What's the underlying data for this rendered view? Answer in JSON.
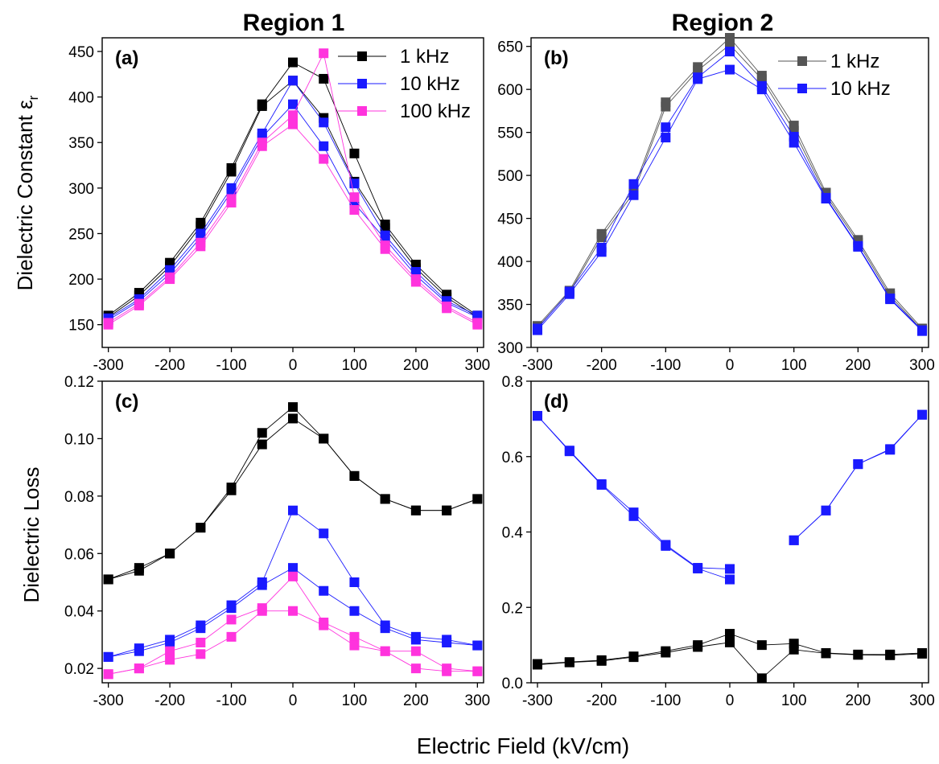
{
  "figure": {
    "region1_title": "Region 1",
    "region2_title": "Region 2",
    "xlabel_common": "Electric Field (kV/cm)",
    "ylabel_top": "Dielectric Constant ε",
    "ylabel_top_sub": "r",
    "ylabel_bottom": "Dielectric Loss"
  },
  "colors": {
    "black": "#000000",
    "gray": "#555555",
    "blue": "#1a1aff",
    "magenta": "#ff33dd"
  },
  "chart_data": [
    {
      "id": "a",
      "type": "line",
      "panel_label": "(a)",
      "x": [
        -300,
        -250,
        -200,
        -150,
        -100,
        -50,
        0,
        50,
        100,
        150,
        200,
        250,
        300
      ],
      "xlim": [
        -310,
        310
      ],
      "ylim": [
        125,
        465
      ],
      "xticks": [
        -300,
        -200,
        -100,
        0,
        100,
        200,
        300
      ],
      "yticks": [
        150,
        200,
        250,
        300,
        350,
        400,
        450
      ],
      "legend": [
        "1 kHz",
        "10 kHz",
        "100 kHz"
      ],
      "series": [
        {
          "name": "1 kHz",
          "color": "black",
          "values": [
            160,
            185,
            218,
            262,
            322,
            392,
            438,
            420,
            338,
            260,
            216,
            183,
            160
          ]
        },
        {
          "name": "1 kHz",
          "color": "black",
          "values": [
            158,
            182,
            214,
            258,
            318,
            390,
            418,
            377,
            307,
            256,
            212,
            180,
            158
          ]
        },
        {
          "name": "10 kHz",
          "color": "blue",
          "values": [
            157,
            178,
            210,
            250,
            300,
            360,
            418,
            372,
            305,
            248,
            208,
            176,
            160
          ]
        },
        {
          "name": "10 kHz",
          "color": "blue",
          "values": [
            155,
            176,
            206,
            246,
            296,
            356,
            392,
            346,
            283,
            244,
            204,
            174,
            158
          ]
        },
        {
          "name": "100 kHz",
          "color": "magenta",
          "values": [
            152,
            173,
            202,
            240,
            288,
            350,
            380,
            448,
            290,
            237,
            200,
            170,
            152
          ]
        },
        {
          "name": "100 kHz",
          "color": "magenta",
          "values": [
            150,
            171,
            200,
            236,
            284,
            346,
            370,
            332,
            276,
            233,
            197,
            168,
            150
          ]
        }
      ]
    },
    {
      "id": "b",
      "type": "line",
      "panel_label": "(b)",
      "x": [
        -300,
        -250,
        -200,
        -150,
        -100,
        -50,
        0,
        50,
        100,
        150,
        200,
        250,
        300
      ],
      "xlim": [
        -310,
        310
      ],
      "ylim": [
        300,
        660
      ],
      "xticks": [
        -300,
        -200,
        -100,
        0,
        100,
        200,
        300
      ],
      "yticks": [
        300,
        350,
        400,
        450,
        500,
        550,
        600,
        650
      ],
      "legend": [
        "1 kHz",
        "10 kHz"
      ],
      "series": [
        {
          "name": "1 kHz",
          "color": "gray",
          "values": [
            325,
            366,
            432,
            484,
            585,
            626,
            660,
            616,
            558,
            480,
            425,
            363,
            322
          ]
        },
        {
          "name": "1 kHz",
          "color": "gray",
          "values": [
            323,
            364,
            428,
            480,
            580,
            622,
            652,
            612,
            552,
            477,
            422,
            360,
            320
          ]
        },
        {
          "name": "10 kHz",
          "color": "blue",
          "values": [
            322,
            365,
            416,
            490,
            556,
            614,
            644,
            604,
            545,
            474,
            418,
            357,
            320
          ]
        },
        {
          "name": "10 kHz",
          "color": "blue",
          "values": [
            320,
            362,
            411,
            477,
            544,
            612,
            623,
            600,
            538,
            473,
            417,
            356,
            319
          ]
        }
      ]
    },
    {
      "id": "c",
      "type": "line",
      "panel_label": "(c)",
      "x": [
        -300,
        -250,
        -200,
        -150,
        -100,
        -50,
        0,
        50,
        100,
        150,
        200,
        250,
        300
      ],
      "xlim": [
        -310,
        310
      ],
      "ylim": [
        0.015,
        0.12
      ],
      "xticks": [
        -300,
        -200,
        -100,
        0,
        100,
        200,
        300
      ],
      "yticks": [
        0.02,
        0.04,
        0.06,
        0.08,
        0.1,
        0.12
      ],
      "ytick_labels": [
        "0.02",
        "0.04",
        "0.06",
        "0.08",
        "0.10",
        "0.12"
      ],
      "series": [
        {
          "name": "1 kHz",
          "color": "black",
          "values": [
            0.051,
            0.055,
            0.06,
            0.069,
            0.083,
            0.102,
            0.111,
            0.1,
            0.087,
            0.079,
            0.075,
            0.075,
            0.079
          ]
        },
        {
          "name": "1 kHz",
          "color": "black",
          "values": [
            0.051,
            0.054,
            0.06,
            0.069,
            0.082,
            0.098,
            0.107,
            0.1,
            0.087,
            0.079,
            0.075,
            0.075,
            0.079
          ]
        },
        {
          "name": "10 kHz",
          "color": "blue",
          "values": [
            0.024,
            0.027,
            0.03,
            0.035,
            0.042,
            0.05,
            0.075,
            0.067,
            0.05,
            0.035,
            0.031,
            0.03,
            0.028
          ]
        },
        {
          "name": "10 kHz",
          "color": "blue",
          "values": [
            0.024,
            0.026,
            0.029,
            0.034,
            0.041,
            0.049,
            0.055,
            0.047,
            0.04,
            0.034,
            0.03,
            0.029,
            0.028
          ]
        },
        {
          "name": "100 kHz",
          "color": "magenta",
          "values": [
            0.018,
            0.02,
            0.026,
            0.029,
            0.037,
            0.041,
            0.052,
            0.036,
            0.031,
            0.026,
            0.026,
            0.02,
            0.019
          ]
        },
        {
          "name": "100 kHz",
          "color": "magenta",
          "values": [
            0.018,
            0.02,
            0.023,
            0.025,
            0.031,
            0.04,
            0.04,
            0.035,
            0.028,
            0.026,
            0.02,
            0.019,
            0.019
          ]
        }
      ]
    },
    {
      "id": "d",
      "type": "line",
      "panel_label": "(d)",
      "x": [
        -300,
        -250,
        -200,
        -150,
        -100,
        -50,
        0,
        50,
        100,
        150,
        200,
        250,
        300
      ],
      "xlim": [
        -310,
        310
      ],
      "ylim": [
        0,
        0.8
      ],
      "xticks": [
        -300,
        -200,
        -100,
        0,
        100,
        200,
        300
      ],
      "yticks": [
        0,
        0.2,
        0.4,
        0.6,
        0.8
      ],
      "ytick_labels": [
        "0.0",
        "0.2",
        "0.4",
        "0.6",
        "0.8"
      ],
      "series": [
        {
          "name": "10 kHz",
          "color": "blue",
          "values": [
            0.708,
            0.616,
            0.527,
            0.452,
            0.366,
            0.305,
            0.302,
            null,
            0.378,
            0.457,
            0.58,
            0.62,
            0.711
          ]
        },
        {
          "name": "10 kHz",
          "color": "blue",
          "values": [
            0.708,
            0.614,
            0.525,
            0.442,
            0.363,
            0.303,
            0.274,
            null,
            0.378,
            0.457,
            0.58,
            0.618,
            0.711
          ]
        },
        {
          "name": "1 kHz",
          "color": "black",
          "values": [
            0.05,
            0.055,
            0.06,
            0.07,
            0.084,
            0.1,
            0.13,
            0.1,
            0.104,
            0.079,
            0.075,
            0.075,
            0.079
          ]
        },
        {
          "name": "1 kHz",
          "color": "black",
          "values": [
            0.048,
            0.054,
            0.058,
            0.068,
            0.08,
            0.095,
            0.107,
            0.012,
            0.088,
            0.078,
            0.074,
            0.073,
            0.077
          ]
        }
      ]
    }
  ]
}
